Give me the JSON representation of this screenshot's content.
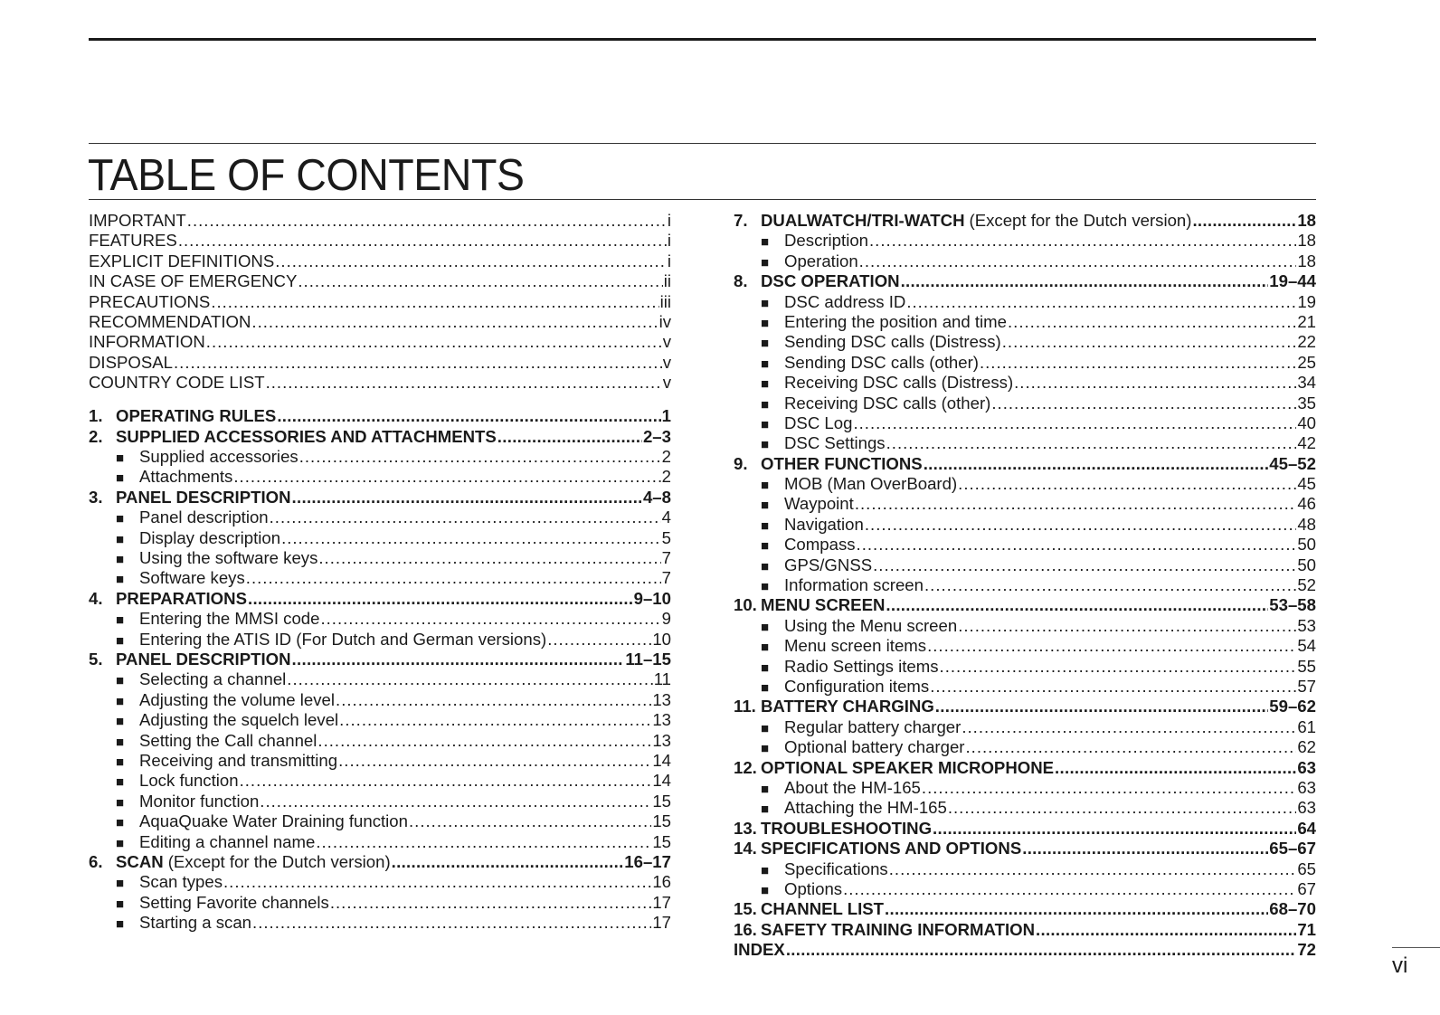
{
  "title": "TABLE OF CONTENTS",
  "page_number": "vi",
  "left": [
    {
      "type": "front",
      "text": "IMPORTANT",
      "page": "i"
    },
    {
      "type": "front",
      "text": "FEATURES",
      "page": "i"
    },
    {
      "type": "front",
      "text": "EXPLICIT DEFINITIONS",
      "page": "i"
    },
    {
      "type": "front",
      "text": "IN CASE OF EMERGENCY",
      "page": "ii"
    },
    {
      "type": "front",
      "text": "PRECAUTIONS",
      "page": "iii"
    },
    {
      "type": "front",
      "text": "RECOMMENDATION",
      "page": "iv"
    },
    {
      "type": "front",
      "text": "INFORMATION",
      "page": "v"
    },
    {
      "type": "front",
      "text": "DISPOSAL",
      "page": "v"
    },
    {
      "type": "front",
      "text": "COUNTRY CODE LIST",
      "page": "v"
    },
    {
      "type": "chapter",
      "num": "1.",
      "text": "OPERATING RULES",
      "page": "1",
      "gap": true
    },
    {
      "type": "chapter",
      "num": "2.",
      "text": "SUPPLIED ACCESSORIES AND ATTACHMENTS",
      "page": "2–3"
    },
    {
      "type": "sub",
      "text": "Supplied accessories",
      "page": "2"
    },
    {
      "type": "sub",
      "text": "Attachments",
      "page": "2"
    },
    {
      "type": "chapter",
      "num": "3.",
      "text": "PANEL DESCRIPTION",
      "page": "4–8"
    },
    {
      "type": "sub",
      "text": "Panel description",
      "page": "4"
    },
    {
      "type": "sub",
      "text": "Display description",
      "page": "5"
    },
    {
      "type": "sub",
      "text": "Using the software keys",
      "page": "7"
    },
    {
      "type": "sub",
      "text": "Software keys",
      "page": "7"
    },
    {
      "type": "chapter",
      "num": "4.",
      "text": "PREPARATIONS",
      "page": "9–10"
    },
    {
      "type": "sub",
      "text": "Entering the MMSI code",
      "page": "9"
    },
    {
      "type": "sub",
      "text": "Entering the ATIS ID (For Dutch and German versions)",
      "page": "10"
    },
    {
      "type": "chapter",
      "num": "5.",
      "text": "PANEL DESCRIPTION",
      "page": "11–15"
    },
    {
      "type": "sub",
      "text": "Selecting a channel",
      "page": "11"
    },
    {
      "type": "sub",
      "text": "Adjusting the volume level",
      "page": "13"
    },
    {
      "type": "sub",
      "text": "Adjusting the squelch level",
      "page": "13"
    },
    {
      "type": "sub",
      "text": "Setting the Call channel",
      "page": "13"
    },
    {
      "type": "sub",
      "text": "Receiving and transmitting",
      "page": "14"
    },
    {
      "type": "sub",
      "text": "Lock function",
      "page": "14"
    },
    {
      "type": "sub",
      "text": "Monitor function",
      "page": "15"
    },
    {
      "type": "sub",
      "text": "AquaQuake Water Draining function",
      "page": "15"
    },
    {
      "type": "sub",
      "text": "Editing a channel name",
      "page": "15"
    },
    {
      "type": "chapter",
      "num": "6.",
      "text": "SCAN",
      "note": "(Except for the Dutch version)",
      "page": "16–17"
    },
    {
      "type": "sub",
      "text": "Scan types",
      "page": "16"
    },
    {
      "type": "sub",
      "text": "Setting Favorite channels",
      "page": "17"
    },
    {
      "type": "sub",
      "text": "Starting a scan",
      "page": "17"
    }
  ],
  "right": [
    {
      "type": "chapter",
      "num": "7.",
      "text": "DUALWATCH/TRI-WATCH",
      "note": "(Except for the Dutch version)",
      "page": "18"
    },
    {
      "type": "sub",
      "text": "Description",
      "page": "18"
    },
    {
      "type": "sub",
      "text": "Operation",
      "page": "18"
    },
    {
      "type": "chapter",
      "num": "8.",
      "text": "DSC OPERATION",
      "page": "19–44"
    },
    {
      "type": "sub",
      "text": "DSC address ID",
      "page": "19"
    },
    {
      "type": "sub",
      "text": "Entering the position and time",
      "page": "21"
    },
    {
      "type": "sub",
      "text": "Sending DSC calls (Distress)",
      "page": "22"
    },
    {
      "type": "sub",
      "text": "Sending DSC calls (other)",
      "page": "25"
    },
    {
      "type": "sub",
      "text": "Receiving DSC calls (Distress)",
      "page": "34"
    },
    {
      "type": "sub",
      "text": "Receiving DSC calls (other)",
      "page": "35"
    },
    {
      "type": "sub",
      "text": "DSC Log",
      "page": "40"
    },
    {
      "type": "sub",
      "text": "DSC Settings",
      "page": "42"
    },
    {
      "type": "chapter",
      "num": "9.",
      "text": "OTHER FUNCTIONS",
      "page": "45–52"
    },
    {
      "type": "sub",
      "text": "MOB (Man OverBoard)",
      "page": "45"
    },
    {
      "type": "sub",
      "text": "Waypoint",
      "page": "46"
    },
    {
      "type": "sub",
      "text": "Navigation",
      "page": "48"
    },
    {
      "type": "sub",
      "text": "Compass",
      "page": "50"
    },
    {
      "type": "sub",
      "text": "GPS/GNSS",
      "page": "50"
    },
    {
      "type": "sub",
      "text": "Information screen",
      "page": "52"
    },
    {
      "type": "chapter",
      "num": "10.",
      "text": "MENU SCREEN",
      "page": "53–58"
    },
    {
      "type": "sub",
      "text": "Using the Menu screen",
      "page": "53"
    },
    {
      "type": "sub",
      "text": "Menu screen items",
      "page": "54"
    },
    {
      "type": "sub",
      "text": "Radio Settings items",
      "page": "55"
    },
    {
      "type": "sub",
      "text": "Configuration items",
      "page": "57"
    },
    {
      "type": "chapter",
      "num": "11.",
      "text": "BATTERY CHARGING",
      "page": "59–62"
    },
    {
      "type": "sub",
      "text": "Regular battery charger",
      "page": "61"
    },
    {
      "type": "sub",
      "text": "Optional battery charger",
      "page": "62"
    },
    {
      "type": "chapter",
      "num": "12.",
      "text": "OPTIONAL SPEAKER MICROPHONE",
      "page": "63"
    },
    {
      "type": "sub",
      "text": "About the HM-165",
      "page": "63"
    },
    {
      "type": "sub",
      "text": "Attaching the HM-165",
      "page": "63"
    },
    {
      "type": "chapter",
      "num": "13.",
      "text": "TROUBLESHOOTING",
      "page": "64"
    },
    {
      "type": "chapter",
      "num": "14.",
      "text": "SPECIFICATIONS AND OPTIONS",
      "page": "65–67"
    },
    {
      "type": "sub",
      "text": "Specifications",
      "page": "65"
    },
    {
      "type": "sub",
      "text": "Options",
      "page": "67"
    },
    {
      "type": "chapter",
      "num": "15.",
      "text": "CHANNEL LIST",
      "page": "68–70"
    },
    {
      "type": "chapter",
      "num": "16.",
      "text": "SAFETY TRAINING INFORMATION",
      "page": "71"
    },
    {
      "type": "chapter",
      "text": "INDEX",
      "page": "72"
    }
  ]
}
